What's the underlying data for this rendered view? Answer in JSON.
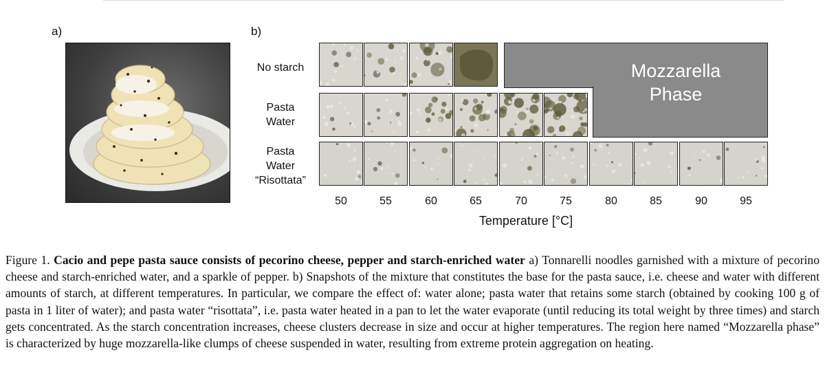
{
  "figure": {
    "panel_a_label": "a)",
    "panel_b_label": "b)",
    "photo_icon": "pasta-photo",
    "rows": [
      {
        "label_lines": [
          "No starch"
        ],
        "tiles": 4
      },
      {
        "label_lines": [
          "Pasta",
          "Water"
        ],
        "tiles": 6
      },
      {
        "label_lines": [
          "Pasta",
          "Water",
          "“Risottata”"
        ],
        "tiles": 10
      }
    ],
    "mozzarella_label_lines": [
      "Mozzarella",
      "Phase"
    ],
    "temperatures": [
      "50",
      "55",
      "60",
      "65",
      "70",
      "75",
      "80",
      "85",
      "90",
      "95"
    ],
    "x_axis_title": "Temperature [°C]"
  },
  "caption": {
    "prefix": "Figure 1.",
    "bold_title": "Cacio and pepe pasta sauce consists of pecorino cheese, pepper and starch-enriched water",
    "body": "a) Tonnarelli noodles garnished with a mixture of pecorino cheese and starch-enriched water, and a sparkle of pepper. b) Snapshots of the mixture that constitutes the base for the pasta sauce, i.e. cheese and water with different amounts of starch, at different temperatures. In particular, we compare the effect of: water alone; pasta water that retains some starch (obtained by cooking 100 g of pasta in 1 liter of water); and pasta water “risottata”, i.e. pasta water heated in a pan to let the water evaporate (until reducing its total weight by three times) and starch gets concentrated. As the starch concentration increases, cheese clusters decrease in size and occur at higher temperatures. The region here named “Mozzarella phase” is characterized by huge mozzarella-like clumps of cheese suspended in water, resulting from extreme protein aggregation on heating."
  },
  "colors": {
    "mozzarella_region": "#8a8a8a",
    "tile_background": "#d8d6cf",
    "cheese_cluster": "#5e5a3a"
  }
}
